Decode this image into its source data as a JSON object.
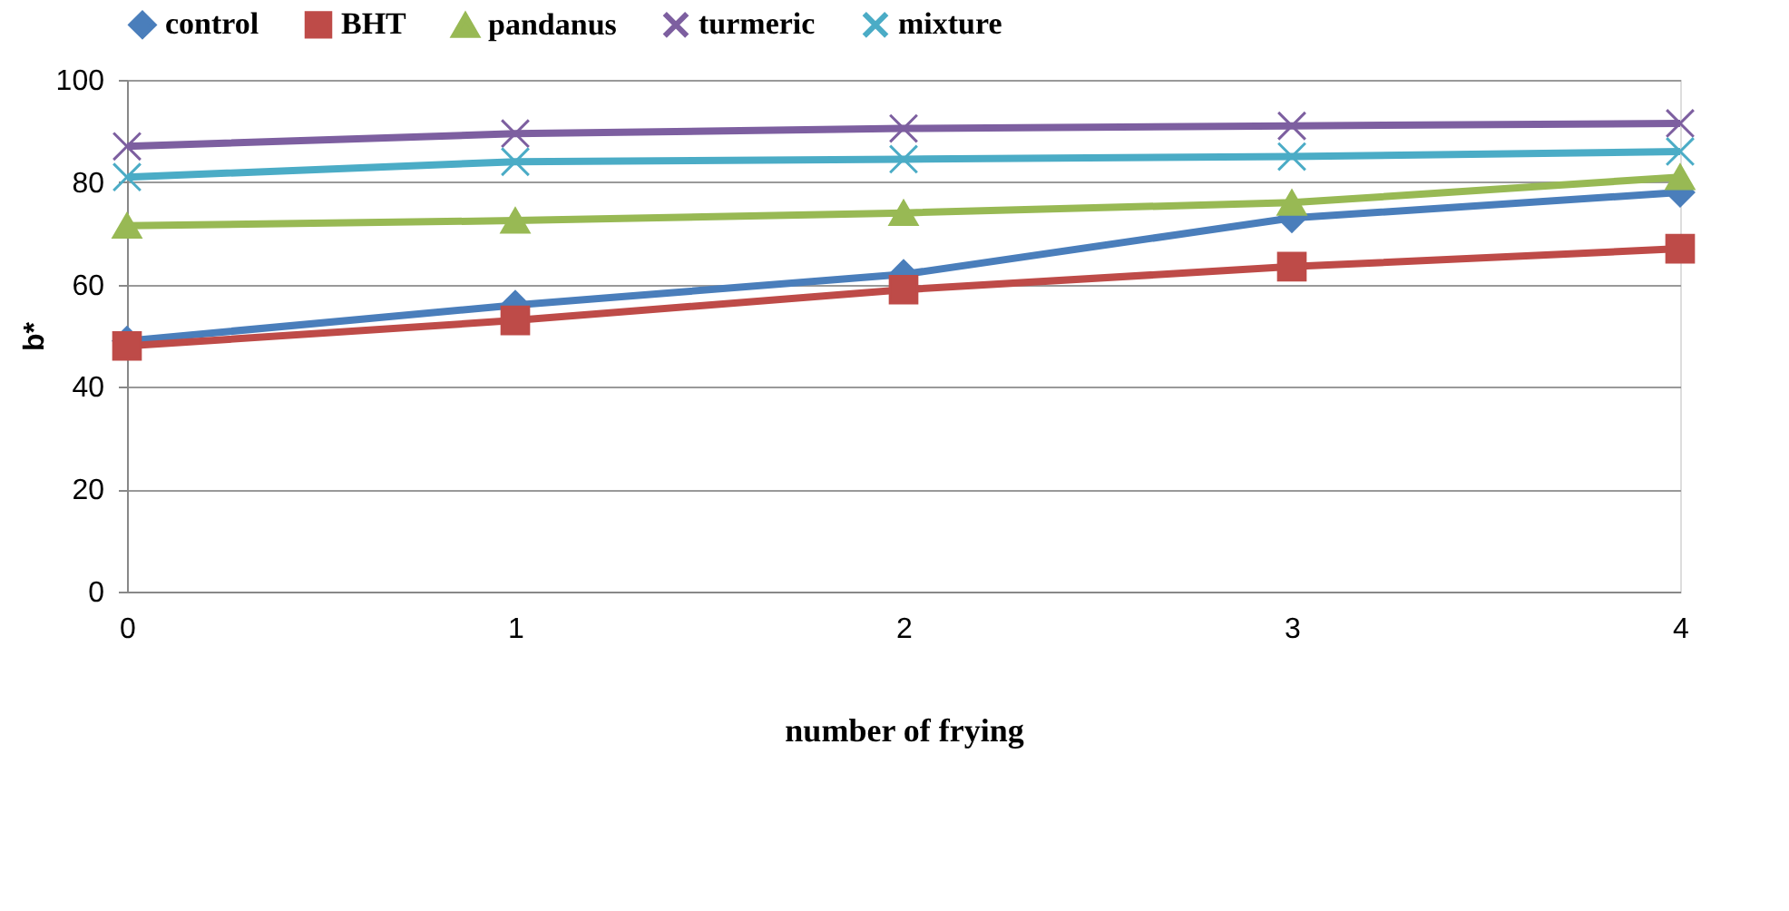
{
  "chart_data": {
    "type": "line",
    "xlabel": "number of frying",
    "ylabel": "b*",
    "categories": [
      "0",
      "1",
      "2",
      "3",
      "4"
    ],
    "series": [
      {
        "name": "control",
        "color": "#4a7ebb",
        "marker": "diamond",
        "values": [
          49,
          56,
          62,
          73,
          78
        ]
      },
      {
        "name": "BHT",
        "color": "#be4b48",
        "marker": "square",
        "values": [
          48,
          53,
          59,
          63.5,
          67
        ]
      },
      {
        "name": "pandanus",
        "color": "#98b954",
        "marker": "triangle",
        "values": [
          71.5,
          72.5,
          74,
          76,
          81
        ]
      },
      {
        "name": "turmeric",
        "color": "#7d5fa0",
        "marker": "cross",
        "values": [
          87,
          89.5,
          90.5,
          91,
          91.5
        ]
      },
      {
        "name": "mixture",
        "color": "#4bacc6",
        "marker": "cross",
        "values": [
          81,
          84,
          84.5,
          85,
          86
        ]
      }
    ],
    "ylim": [
      0,
      100
    ],
    "yticks": [
      0,
      20,
      40,
      60,
      80,
      100
    ],
    "grid": "y",
    "legend": "top",
    "line_style": "solid"
  }
}
